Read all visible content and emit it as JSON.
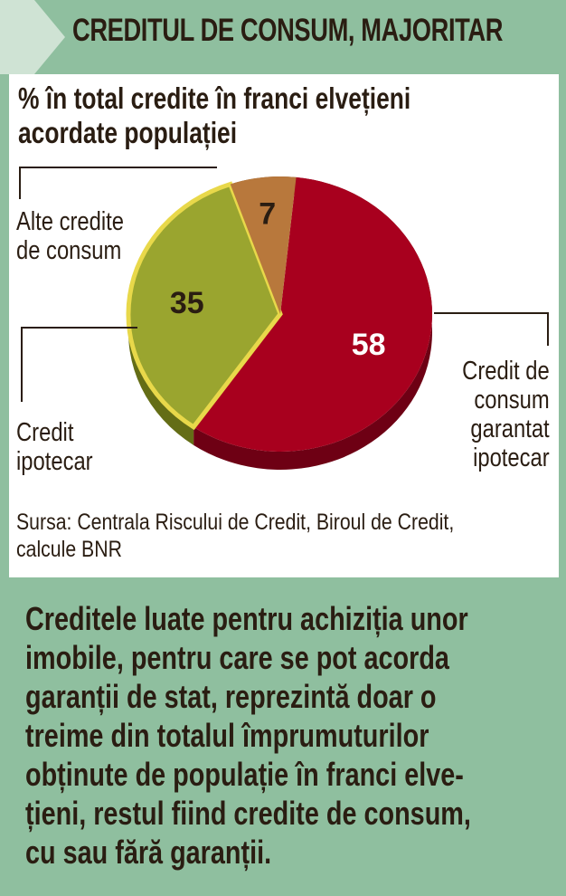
{
  "header": {
    "title": "CREDITUL DE CONSUM, MAJORITAR"
  },
  "subtitle_lines": [
    "% în total credite în franci elvețieni",
    "acordate populației"
  ],
  "labels": {
    "other": [
      "Alte credite",
      "de consum"
    ],
    "mortgage": [
      "Credit",
      "ipotecar"
    ],
    "secured": [
      "Credit de",
      "consum",
      "garantat",
      "ipotecar"
    ]
  },
  "source_lines": [
    "Sursa: Centrala Riscului de Credit, Biroul de Credit,",
    "calcule BNR"
  ],
  "body_lines": [
    "Creditele luate pentru achiziția unor",
    "imobile, pentru care se pot acorda",
    "garanții de stat, reprezintă doar o",
    "treime din totalul împrumuturilor",
    "obținute de populație în franci elve-",
    "țieni, restul fiind credite de consum,",
    "cu sau fără garanții."
  ],
  "colors": {
    "background": "#8fbf9f",
    "header_arrow": "#cfe3d4",
    "panel": "#ffffff",
    "text": "#2a1d12"
  },
  "chart_data": {
    "type": "pie",
    "title": "% în total credite în franci elvețieni acordate populației",
    "slices": [
      {
        "label": "Credit de consum garantat ipotecar",
        "value": 58,
        "color": "#a8001e",
        "dark": "#6e0014"
      },
      {
        "label": "Credit ipotecar",
        "value": 35,
        "color": "#9aa52f",
        "dark": "#646d16"
      },
      {
        "label": "Alte credite de consum",
        "value": 7,
        "color": "#b8783c",
        "dark": "#7a4a20"
      }
    ],
    "source": "Sursa: Centrala Riscului de Credit, Biroul de Credit, calcule BNR"
  }
}
